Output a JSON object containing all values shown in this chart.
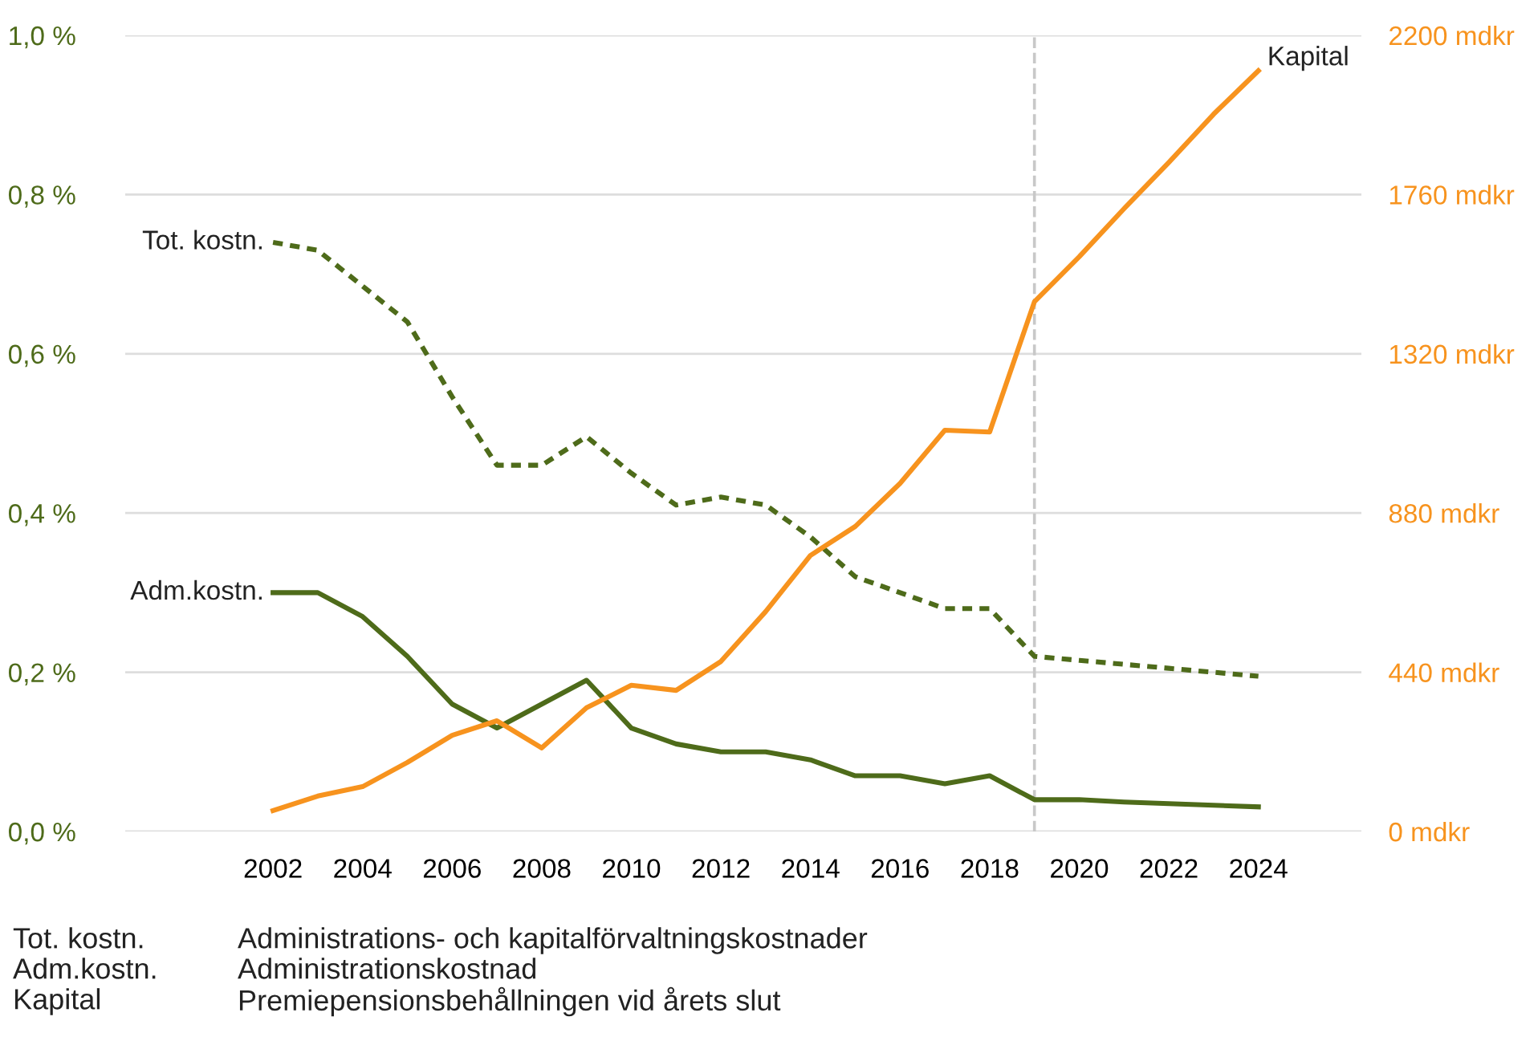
{
  "chart_data": {
    "type": "line",
    "x": [
      2002,
      2003,
      2004,
      2005,
      2006,
      2007,
      2008,
      2009,
      2010,
      2011,
      2012,
      2013,
      2014,
      2015,
      2016,
      2017,
      2018,
      2019,
      2020,
      2021,
      2022,
      2023,
      2024
    ],
    "series": [
      {
        "name": "Tot. kostn.",
        "color": "#4e6b1a",
        "line_style": "dotted",
        "values": [
          0.74,
          0.73,
          0.685,
          0.64,
          0.546,
          0.46,
          0.46,
          0.496,
          0.45,
          0.41,
          0.42,
          0.41,
          0.37,
          0.32,
          0.3,
          0.28,
          0.28,
          0.22,
          0.215,
          0.21,
          0.205,
          0.2,
          0.195
        ]
      },
      {
        "name": "Adm.kostn.",
        "color": "#4e6b1a",
        "line_style": "solid",
        "values": [
          0.3,
          0.3,
          0.27,
          0.22,
          0.16,
          0.13,
          0.16,
          0.19,
          0.13,
          0.11,
          0.1,
          0.1,
          0.09,
          0.07,
          0.07,
          0.06,
          0.07,
          0.04,
          0.04,
          0.037,
          0.035,
          0.033,
          0.031
        ]
      },
      {
        "name": "Kapital",
        "color": "#f7931e",
        "line_style": "solid",
        "axis": "y2",
        "values": [
          58,
          98,
          124,
          191,
          266,
          306,
          231,
          342,
          404,
          390,
          470,
          608,
          763,
          843,
          962,
          1109,
          1104,
          1464,
          1588,
          1721,
          1849,
          1982,
          2102
        ]
      }
    ],
    "xlim": [
      1998.7,
      2026.3
    ],
    "xticks": [
      2002,
      2004,
      2006,
      2008,
      2010,
      2012,
      2014,
      2016,
      2018,
      2020,
      2022,
      2024
    ],
    "ylim": [
      0,
      1
    ],
    "yticks": [
      {
        "value": 0,
        "label": "0,0 %"
      },
      {
        "value": 0.2,
        "label": "0,2 %"
      },
      {
        "value": 0.4,
        "label": "0,4 %"
      },
      {
        "value": 0.6,
        "label": "0,6 %"
      },
      {
        "value": 0.8,
        "label": "0,8 %"
      },
      {
        "value": 1,
        "label": "1,0 %"
      }
    ],
    "y2lim": [
      0,
      2200
    ],
    "y2ticks": [
      {
        "value": 0,
        "label": "0 mdkr"
      },
      {
        "value": 440,
        "label": "440 mdkr"
      },
      {
        "value": 880,
        "label": "880 mdkr"
      },
      {
        "value": 1320,
        "label": "1320 mdkr"
      },
      {
        "value": 1760,
        "label": "1760 mdkr"
      },
      {
        "value": 2200,
        "label": "2200 mdkr"
      }
    ],
    "ref_lines": [
      {
        "axis": "x",
        "value": 2019,
        "color": "#c8c8c8",
        "line_style": "dashed"
      }
    ],
    "grid": "y",
    "legend": false,
    "marker": "none",
    "annotations": [
      "Tot. kostn.",
      "Administrations- och kapitalförvaltningskostnader",
      "Adm.kostn.",
      "Administrationskostnad",
      "Kapital",
      "Premiepensionsbehållningen vid årets slut"
    ]
  }
}
